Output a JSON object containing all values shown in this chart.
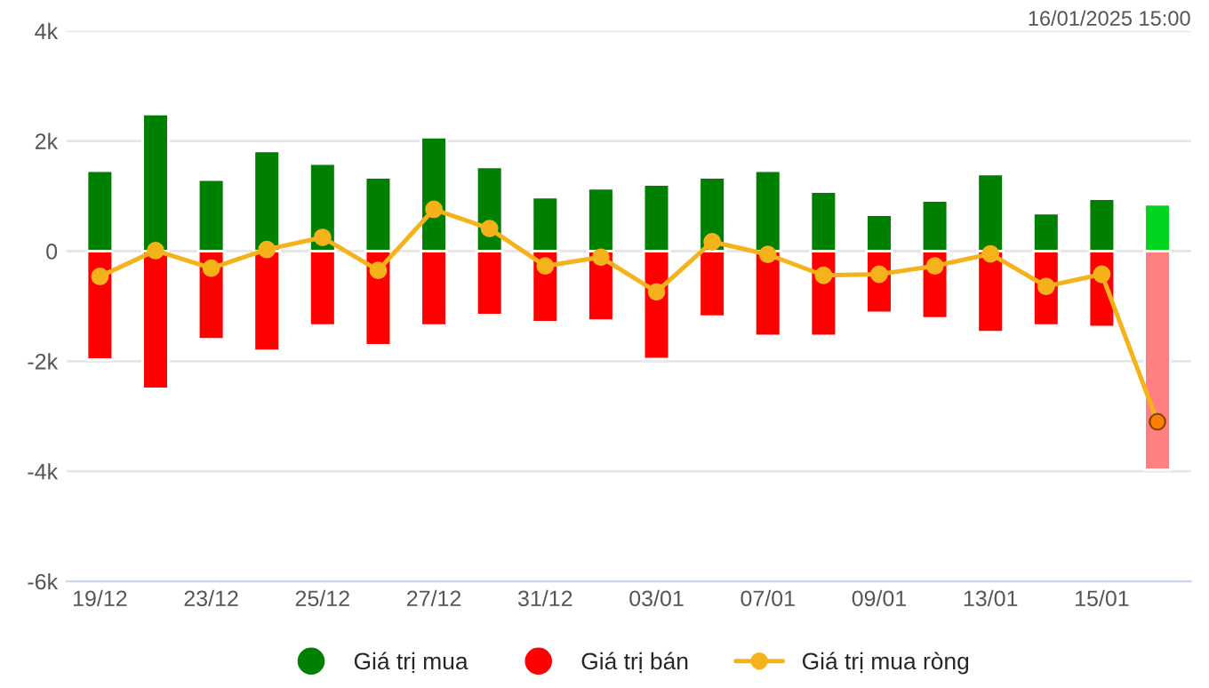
{
  "chart_data": {
    "type": "bar",
    "categories": [
      "19/12",
      null,
      "23/12",
      null,
      "25/12",
      null,
      "27/12",
      null,
      "31/12",
      null,
      "03/01",
      null,
      "07/01",
      null,
      "09/01",
      null,
      "13/01",
      null,
      "15/01",
      null
    ],
    "series": [
      {
        "name": "Giá trị mua",
        "color": "#008000",
        "colors": [
          "#008000",
          "#008000",
          "#008000",
          "#008000",
          "#008000",
          "#008000",
          "#008000",
          "#008000",
          "#008000",
          "#008000",
          "#008000",
          "#008000",
          "#008000",
          "#008000",
          "#008000",
          "#008000",
          "#008000",
          "#008000",
          "#008000",
          "#00d41e"
        ],
        "values": [
          1460,
          2490,
          1300,
          1820,
          1590,
          1340,
          2070,
          1530,
          980,
          1140,
          1210,
          1340,
          1460,
          1080,
          660,
          920,
          1400,
          690,
          950,
          850
        ]
      },
      {
        "name": "Giá trị bán",
        "color": "#ff0000",
        "colors": [
          "#ff0000",
          "#ff0000",
          "#ff0000",
          "#ff0000",
          "#ff0000",
          "#ff0000",
          "#ff0000",
          "#ff0000",
          "#ff0000",
          "#ff0000",
          "#ff0000",
          "#ff0000",
          "#ff0000",
          "#ff0000",
          "#ff0000",
          "#ff0000",
          "#ff0000",
          "#ff0000",
          "#ff0000",
          "#ff8080"
        ],
        "values": [
          -1970,
          -2500,
          -1600,
          -1810,
          -1350,
          -1710,
          -1350,
          -1160,
          -1290,
          -1260,
          -1960,
          -1190,
          -1540,
          -1540,
          -1120,
          -1220,
          -1470,
          -1350,
          -1380,
          -3970
        ]
      },
      {
        "name": "Giá trị mua ròng",
        "type": "line",
        "color": "#f5b21b",
        "colors": [
          "#f5b21b",
          "#f5b21b",
          "#f5b21b",
          "#f5b21b",
          "#f5b21b",
          "#f5b21b",
          "#f5b21b",
          "#f5b21b",
          "#f5b21b",
          "#f5b21b",
          "#f5b21b",
          "#f5b21b",
          "#f5b21b",
          "#f5b21b",
          "#f5b21b",
          "#f5b21b",
          "#f5b21b",
          "#f5b21b",
          "#f5b21b",
          "#ff7f00"
        ],
        "values": [
          -460,
          10,
          -310,
          30,
          250,
          -350,
          760,
          410,
          -270,
          -110,
          -740,
          170,
          -60,
          -440,
          -420,
          -270,
          -50,
          -640,
          -420,
          -3100
        ]
      }
    ],
    "ylim": [
      -6000,
      4000
    ],
    "yticks": [
      {
        "value": -6000,
        "label": "-6k"
      },
      {
        "value": -4000,
        "label": "-4k"
      },
      {
        "value": -2000,
        "label": "-2k"
      },
      0,
      {
        "value": 2000,
        "label": "2k"
      },
      {
        "value": 4000,
        "label": "4k"
      }
    ],
    "stacked": true,
    "grid": "y",
    "legend": "bottom",
    "marker": "circle",
    "line_style": "solid",
    "annotations": [
      "16/01/2025 15:00"
    ]
  }
}
